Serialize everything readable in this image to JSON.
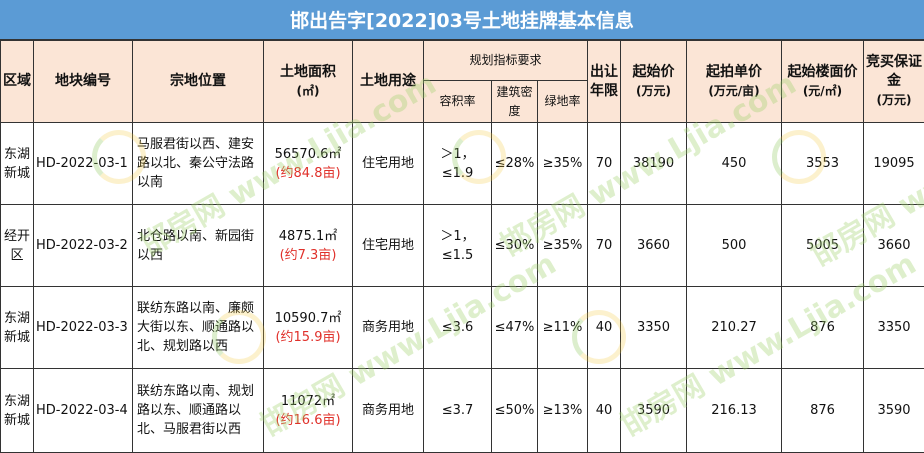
{
  "title": "邯出告字[2022]03号土地挂牌基本信息",
  "headers": {
    "region": "区域",
    "plot_code": "地块编号",
    "location": "宗地位置",
    "area": "土地面积",
    "area_unit": "(㎡)",
    "land_use": "土地用途",
    "planning": "规划指标要求",
    "far": "容积率",
    "density": "建筑密度",
    "green": "绿地率",
    "term": "出让年限",
    "start_price": "起始价",
    "start_price_unit": "(万元)",
    "unit_price": "起拍单价",
    "unit_price_unit": "(万元/亩)",
    "floor_price": "起始楼面价",
    "floor_price_unit": "(元/㎡)",
    "deposit": "竞买保证金",
    "deposit_unit": "(万元)"
  },
  "rows": [
    {
      "region": "东湖新城",
      "code": "HD-2022-03-1",
      "location": "马服君街以西、建安路以北、秦公守法路以南",
      "area": "56570.6㎡",
      "area_mu": "(约84.8亩)",
      "use": "住宅用地",
      "far": "＞1，≤1.9",
      "density": "≤28%",
      "green": "≥35%",
      "term": "70",
      "start_price": "38190",
      "unit_price": "450",
      "floor_price": "3553",
      "deposit": "19095"
    },
    {
      "region": "经开区",
      "code": "HD-2022-03-2",
      "location": "北仓路以南、新园街以西",
      "area": "4875.1㎡",
      "area_mu": "(约7.3亩)",
      "use": "住宅用地",
      "far": "＞1，≤1.5",
      "density": "≤30%",
      "green": "≥35%",
      "term": "70",
      "start_price": "3660",
      "unit_price": "500",
      "floor_price": "5005",
      "deposit": "3660"
    },
    {
      "region": "东湖新城",
      "code": "HD-2022-03-3",
      "location": "联纺东路以南、廉颇大街以东、顺通路以北、规划路以西",
      "area": "10590.7㎡",
      "area_mu": "(约15.9亩)",
      "use": "商务用地",
      "far": "≤3.6",
      "density": "≤47%",
      "green": "≥11%",
      "term": "40",
      "start_price": "3350",
      "unit_price": "210.27",
      "floor_price": "876",
      "deposit": "3350"
    },
    {
      "region": "东湖新城",
      "code": "HD-2022-03-4",
      "location": "联纺东路以南、规划路以东、顺通路以北、马服君街以西",
      "area": "11072㎡",
      "area_mu": "(约16.6亩)",
      "use": "商务用地",
      "far": "≤3.7",
      "density": "≤50%",
      "green": "≥13%",
      "term": "40",
      "start_price": "3590",
      "unit_price": "216.13",
      "floor_price": "876",
      "deposit": "3590"
    }
  ],
  "watermark": "邯房网 www.Ljia.com"
}
